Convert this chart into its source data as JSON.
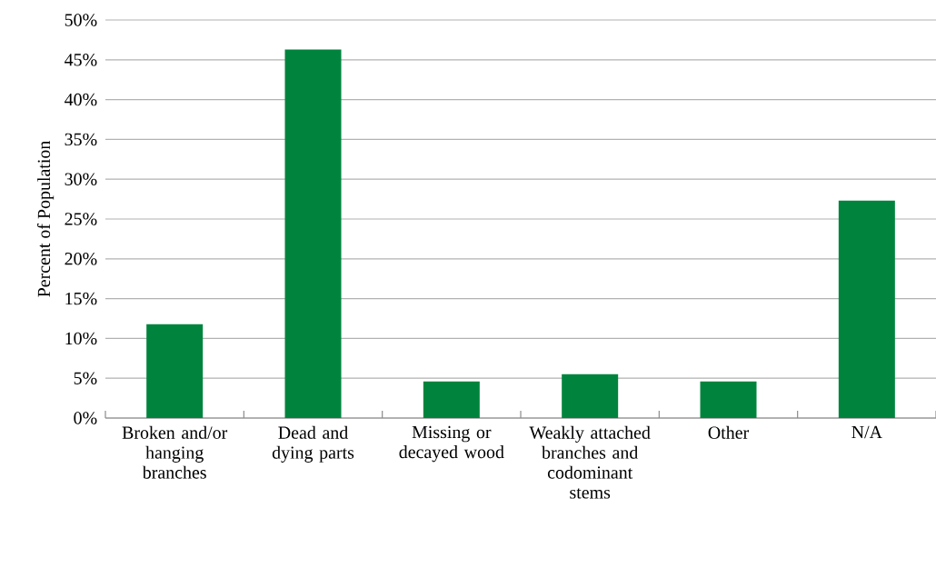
{
  "chart_data": {
    "type": "bar",
    "ylabel": "Percent of Population",
    "categories": [
      "Broken and/or hanging branches",
      "Dead and dying parts",
      "Missing or decayed wood",
      "Weakly attached branches and codominant stems",
      "Other",
      "N/A"
    ],
    "values": [
      11.8,
      46.3,
      4.6,
      5.5,
      4.6,
      27.3
    ],
    "color": "#00843d",
    "ylim": [
      0,
      50
    ],
    "yticks": [
      {
        "value": 0,
        "label": "0%"
      },
      {
        "value": 5,
        "label": "5%"
      },
      {
        "value": 10,
        "label": "10%"
      },
      {
        "value": 15,
        "label": "15%"
      },
      {
        "value": 20,
        "label": "20%"
      },
      {
        "value": 25,
        "label": "25%"
      },
      {
        "value": 30,
        "label": "30%"
      },
      {
        "value": 35,
        "label": "35%"
      },
      {
        "value": 40,
        "label": "40%"
      },
      {
        "value": 45,
        "label": "45%"
      },
      {
        "value": 50,
        "label": "50%"
      }
    ],
    "grid": "y"
  }
}
